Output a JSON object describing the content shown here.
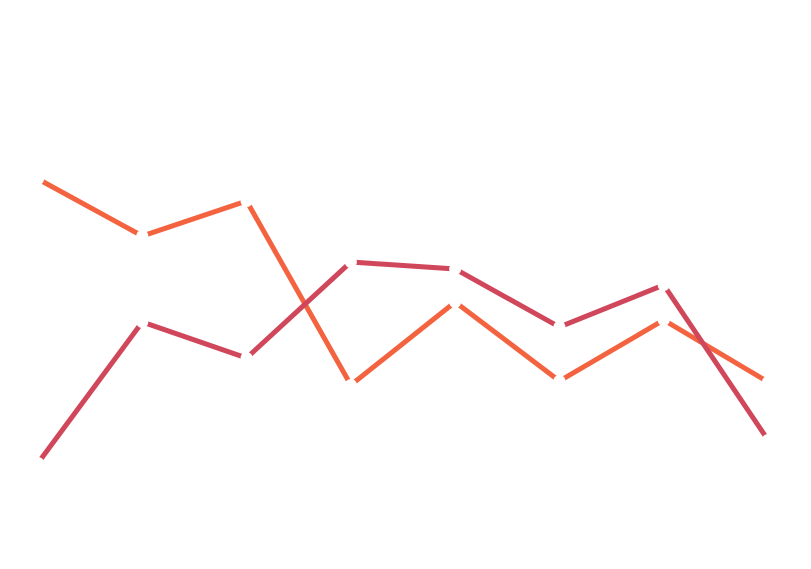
{
  "chart_data": {
    "type": "line",
    "categories": [
      null,
      null,
      null,
      null,
      null,
      null,
      null,
      null
    ],
    "series": [
      {
        "color": "#f4633f",
        "values": [
          390,
          333,
          368,
          184,
          267,
          188,
          249,
          187
        ]
      },
      {
        "color": "#d0465a",
        "values": [
          106,
          247,
          211,
          307,
          300,
          242,
          284,
          129
        ]
      }
    ],
    "ylim": [
      0,
      569
    ]
  }
}
